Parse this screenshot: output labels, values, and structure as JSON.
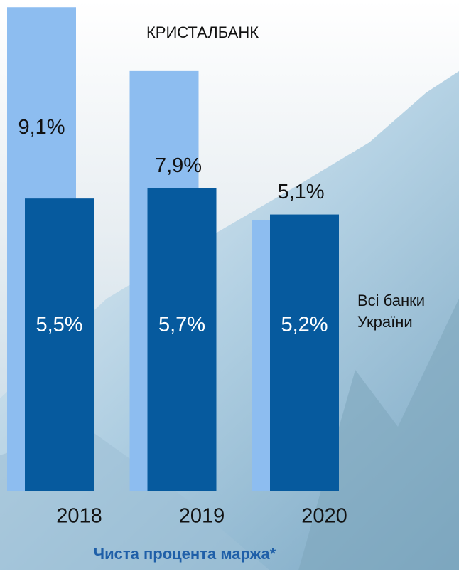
{
  "chart_data": {
    "type": "bar",
    "title": "Чиста процента маржа*",
    "categories": [
      "2018",
      "2019",
      "2020"
    ],
    "series": [
      {
        "name": "КРИСТАЛБАНК",
        "color": "#8dbdf0",
        "values": [
          9.1,
          7.9,
          5.1
        ],
        "value_labels": [
          "9,1%",
          "7,9%",
          "5,1%"
        ]
      },
      {
        "name": "Всі банки України",
        "color": "#065a9e",
        "values": [
          5.5,
          5.7,
          5.2
        ],
        "value_labels": [
          "5,5%",
          "5,7%",
          "5,2%"
        ]
      }
    ]
  }
}
